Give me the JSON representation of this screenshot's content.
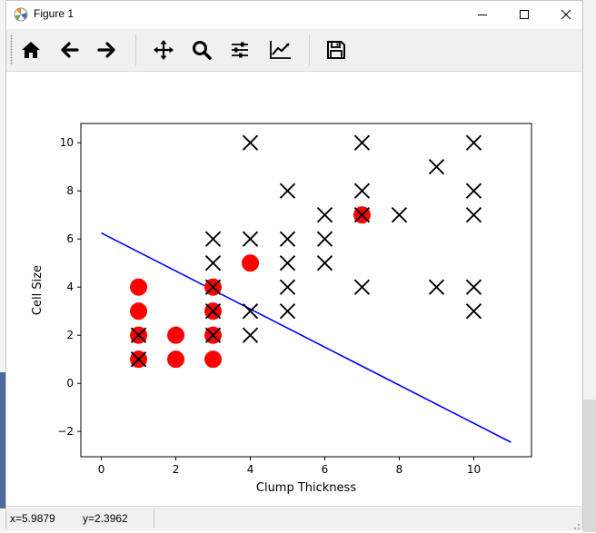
{
  "window": {
    "title": "Figure 1",
    "buttons": [
      "minimize",
      "maximize",
      "close"
    ]
  },
  "toolbar": {
    "buttons": [
      {
        "name": "home-button",
        "icon": "home-icon"
      },
      {
        "name": "back-button",
        "icon": "arrow-left-icon"
      },
      {
        "name": "forward-button",
        "icon": "arrow-right-icon"
      },
      {
        "name": "pan-button",
        "icon": "move-icon"
      },
      {
        "name": "zoom-button",
        "icon": "magnifier-icon"
      },
      {
        "name": "subplots-button",
        "icon": "sliders-icon"
      },
      {
        "name": "edit-axes-button",
        "icon": "line-chart-icon"
      },
      {
        "name": "save-button",
        "icon": "floppy-disk-icon"
      }
    ]
  },
  "status": {
    "x_text": "x=5.9879",
    "y_text": "y=2.3962"
  },
  "chart_data": {
    "type": "scatter",
    "xlabel": "Clump Thickness",
    "ylabel": "Cell Size",
    "xlim": [
      -0.55,
      11.55
    ],
    "ylim": [
      -3.05,
      10.8
    ],
    "xticks": [
      0,
      2,
      4,
      6,
      8,
      10
    ],
    "yticks": [
      -2,
      0,
      2,
      4,
      6,
      8,
      10
    ],
    "grid": false,
    "colors": {
      "class_a": "#ff0000",
      "class_b": "#000000",
      "boundary": "#0000ff"
    },
    "series": [
      {
        "marker": "circle",
        "color": "#ff0000",
        "points": [
          [
            1,
            1
          ],
          [
            1,
            2
          ],
          [
            1,
            3
          ],
          [
            1,
            4
          ],
          [
            2,
            1
          ],
          [
            2,
            2
          ],
          [
            3,
            1
          ],
          [
            3,
            2
          ],
          [
            3,
            3
          ],
          [
            3,
            4
          ],
          [
            4,
            5
          ],
          [
            7,
            7
          ]
        ]
      },
      {
        "marker": "x",
        "color": "#000000",
        "points": [
          [
            1,
            1
          ],
          [
            1,
            2
          ],
          [
            3,
            2
          ],
          [
            3,
            3
          ],
          [
            3,
            4
          ],
          [
            3,
            5
          ],
          [
            3,
            6
          ],
          [
            4,
            2
          ],
          [
            4,
            3
          ],
          [
            4,
            6
          ],
          [
            4,
            10
          ],
          [
            5,
            3
          ],
          [
            5,
            4
          ],
          [
            5,
            5
          ],
          [
            5,
            6
          ],
          [
            5,
            8
          ],
          [
            6,
            5
          ],
          [
            6,
            6
          ],
          [
            6,
            7
          ],
          [
            7,
            4
          ],
          [
            7,
            7
          ],
          [
            7,
            8
          ],
          [
            7,
            10
          ],
          [
            8,
            7
          ],
          [
            9,
            4
          ],
          [
            9,
            9
          ],
          [
            10,
            3
          ],
          [
            10,
            4
          ],
          [
            10,
            7
          ],
          [
            10,
            8
          ],
          [
            10,
            10
          ]
        ]
      },
      {
        "marker": "line",
        "color": "#0000ff",
        "x": [
          0,
          11
        ],
        "y": [
          6.25,
          -2.45
        ]
      }
    ]
  }
}
